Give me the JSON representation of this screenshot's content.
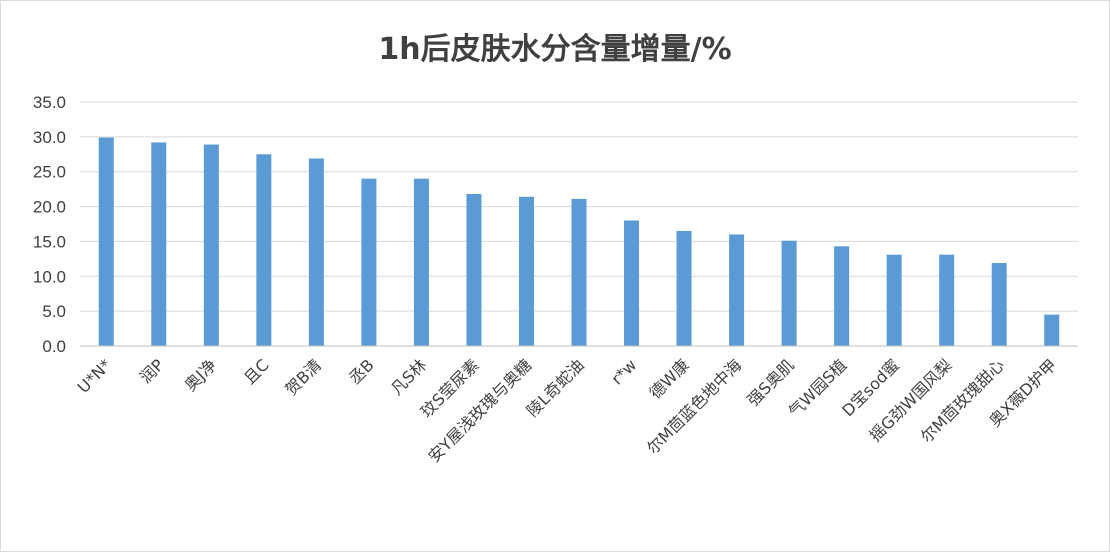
{
  "chart_data": {
    "type": "bar",
    "title": "1h后皮肤水分含量增量/%",
    "xlabel": "",
    "ylabel": "",
    "ylim": [
      0,
      35
    ],
    "yticks": [
      "0.0",
      "5.0",
      "10.0",
      "15.0",
      "20.0",
      "25.0",
      "30.0",
      "35.0"
    ],
    "grid": true,
    "legend": "none",
    "bar_color": "#5b9bd5",
    "categories": [
      "U*N*",
      "润P",
      "奥J净",
      "且C",
      "贺B清",
      "丞B",
      "凡S林",
      "玟S莹尿素",
      "安Y屋浅玫瑰与奥糖",
      "陵L奇蛇油",
      "r*w",
      "德W康",
      "尔M茴蓝色地中海",
      "强S奥肌",
      "气W园S植",
      "D宝sod蜜",
      "摇G劲W国风梨",
      "尔M茴玫瑰甜心",
      "奥X薇D护甲"
    ],
    "values": [
      29.9,
      29.2,
      28.9,
      27.5,
      26.9,
      24.0,
      24.0,
      21.8,
      21.4,
      21.1,
      18.0,
      16.5,
      16.0,
      15.1,
      14.3,
      13.1,
      13.1,
      11.9,
      4.5
    ]
  }
}
